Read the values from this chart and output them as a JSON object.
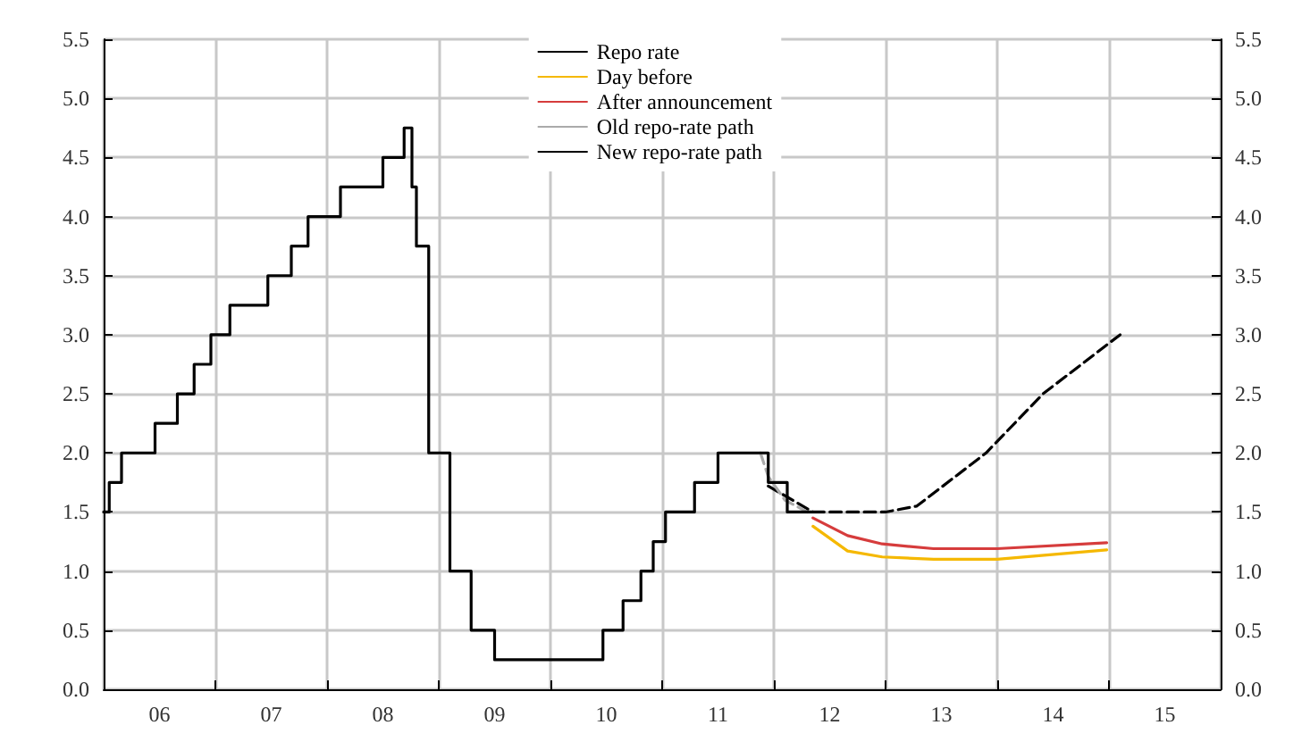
{
  "chart_data": {
    "type": "line",
    "xlim": [
      5.5,
      15.5
    ],
    "xticks": [
      {
        "value": 5.5,
        "label": null
      },
      {
        "value": 6.5,
        "label": null
      },
      {
        "value": 7.5,
        "label": null
      },
      {
        "value": 8.5,
        "label": null
      },
      {
        "value": 9.5,
        "label": null
      },
      {
        "value": 10.5,
        "label": null
      },
      {
        "value": 11.5,
        "label": null
      },
      {
        "value": 12.5,
        "label": null
      },
      {
        "value": 13.5,
        "label": null
      },
      {
        "value": 14.5,
        "label": null
      },
      {
        "value": 15.5,
        "label": null
      },
      {
        "value": 6,
        "label": "06"
      },
      {
        "value": 7,
        "label": "07"
      },
      {
        "value": 8,
        "label": "08"
      },
      {
        "value": 9,
        "label": "09"
      },
      {
        "value": 10,
        "label": "10"
      },
      {
        "value": 11,
        "label": "11"
      },
      {
        "value": 12,
        "label": "12"
      },
      {
        "value": 13,
        "label": "13"
      },
      {
        "value": 14,
        "label": "14"
      },
      {
        "value": 15,
        "label": "15"
      }
    ],
    "ylim": [
      0,
      5.5
    ],
    "yticks": [
      {
        "value": 0,
        "label": "0.0"
      },
      {
        "value": 0.5,
        "label": "0.5"
      },
      {
        "value": 1,
        "label": "1.0"
      },
      {
        "value": 1.5,
        "label": "1.5"
      },
      {
        "value": 2,
        "label": "2.0"
      },
      {
        "value": 2.5,
        "label": "2.5"
      },
      {
        "value": 3,
        "label": "3.0"
      },
      {
        "value": 3.5,
        "label": "3.5"
      },
      {
        "value": 4,
        "label": "4.0"
      },
      {
        "value": 4.5,
        "label": "4.5"
      },
      {
        "value": 5,
        "label": "5.0"
      },
      {
        "value": 5.5,
        "label": "5.5"
      }
    ],
    "y2lim": [
      0,
      5.5
    ],
    "y2ticks": [
      {
        "value": 0,
        "label": "0.0"
      },
      {
        "value": 0.5,
        "label": "0.5"
      },
      {
        "value": 1,
        "label": "1.0"
      },
      {
        "value": 1.5,
        "label": "1.5"
      },
      {
        "value": 2,
        "label": "2.0"
      },
      {
        "value": 2.5,
        "label": "2.5"
      },
      {
        "value": 3,
        "label": "3.0"
      },
      {
        "value": 3.5,
        "label": "3.5"
      },
      {
        "value": 4,
        "label": "4.0"
      },
      {
        "value": 4.5,
        "label": "4.5"
      },
      {
        "value": 5,
        "label": "5.0"
      },
      {
        "value": 5.5,
        "label": "5.5"
      }
    ],
    "grid": true,
    "legend": "top",
    "marker": "none",
    "series": [
      {
        "name": "Repo rate",
        "type": "step",
        "color": "#000000",
        "line_style": "solid",
        "x": [
          5.5,
          5.55,
          5.66,
          5.96,
          6.16,
          6.31,
          6.46,
          6.63,
          6.97,
          7.18,
          7.33,
          7.62,
          8.0,
          8.19,
          8.26,
          8.3,
          8.41,
          8.6,
          8.79,
          9.0,
          9.97,
          10.15,
          10.31,
          10.42,
          10.53,
          10.79,
          11.0,
          11.45,
          11.62,
          11.85
        ],
        "values": [
          1.5,
          1.75,
          2.0,
          2.25,
          2.5,
          2.75,
          3.0,
          3.25,
          3.5,
          3.75,
          4.0,
          4.25,
          4.5,
          4.75,
          4.25,
          3.75,
          2.0,
          1.0,
          0.5,
          0.25,
          0.5,
          0.75,
          1.0,
          1.25,
          1.5,
          1.75,
          2.0,
          1.75,
          1.5,
          1.5
        ]
      },
      {
        "name": "Day before",
        "color": "#f5b800",
        "line_style": "solid",
        "x": [
          11.85,
          12.16,
          12.47,
          12.93,
          13.5,
          14.48
        ],
        "values": [
          1.38,
          1.17,
          1.12,
          1.1,
          1.1,
          1.18
        ]
      },
      {
        "name": "After announcement",
        "color": "#d63c3c",
        "line_style": "solid",
        "x": [
          11.85,
          12.16,
          12.47,
          12.93,
          13.5,
          14.48
        ],
        "values": [
          1.45,
          1.3,
          1.23,
          1.19,
          1.19,
          1.24
        ]
      },
      {
        "name": "Old repo-rate path",
        "color": "#aaaaaa",
        "line_style": "dashed",
        "x": [
          11.38,
          11.45,
          11.6,
          11.8
        ],
        "values": [
          2.0,
          1.8,
          1.6,
          1.5
        ]
      },
      {
        "name": "New repo-rate path",
        "color": "#000000",
        "line_style": "dashed",
        "x": [
          11.45,
          11.85,
          12.5,
          12.78,
          13.4,
          13.91,
          14.6
        ],
        "values": [
          1.72,
          1.5,
          1.5,
          1.55,
          2.0,
          2.5,
          3.0
        ]
      }
    ]
  }
}
